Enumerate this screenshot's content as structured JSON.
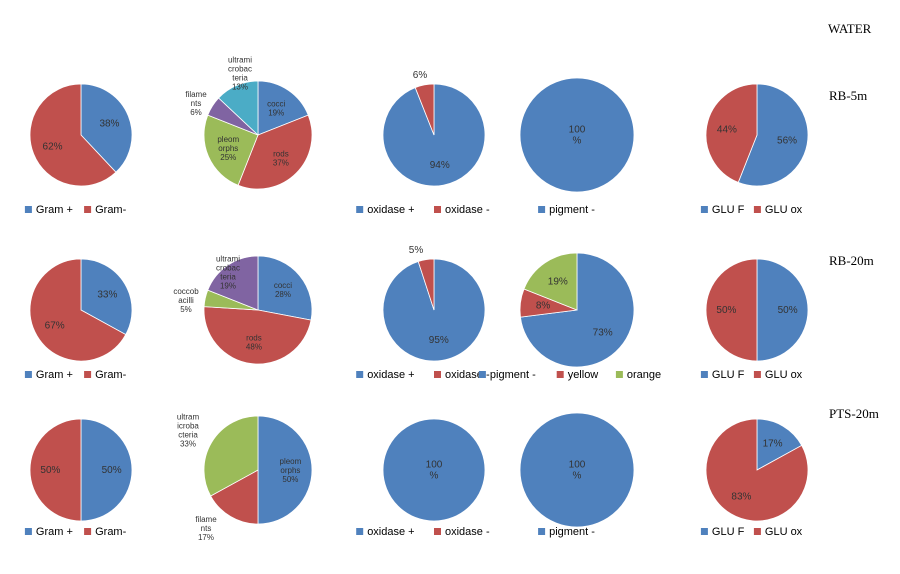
{
  "header": {
    "title": "WATER"
  },
  "colors": {
    "blue": "#4f81bd",
    "red": "#c0504d",
    "green": "#9bbb59",
    "purple": "#8064a2",
    "cyan": "#4bacc6"
  },
  "rows": [
    {
      "label": "RB-5m"
    },
    {
      "label": "RB-20m"
    },
    {
      "label": "PTS-20m"
    }
  ],
  "chart_data": [
    {
      "type": "pie",
      "row": "RB-5m",
      "categories": [
        "Gram +",
        "Gram-"
      ],
      "values": [
        38,
        62
      ],
      "labels": [
        "38%",
        "62%"
      ],
      "legend": [
        "Gram +",
        "Gram-"
      ]
    },
    {
      "type": "pie",
      "row": "RB-5m",
      "categories": [
        "cocci",
        "rods",
        "pleomorphs",
        "filaments",
        "ultramicrobacteria"
      ],
      "values": [
        19,
        37,
        25,
        6,
        13
      ],
      "labels": [
        "cocci\n19%",
        "rods\n37%",
        "pleom\norphs\n25%",
        "filame\nnts\n6%",
        "ultrami\ncrobac\nteria\n13%"
      ],
      "legend": []
    },
    {
      "type": "pie",
      "row": "RB-5m",
      "categories": [
        "oxidase +",
        "oxidase -"
      ],
      "values": [
        94,
        6
      ],
      "labels": [
        "94%",
        "6%"
      ],
      "legend": [
        "oxidase +",
        "oxidase -"
      ]
    },
    {
      "type": "pie",
      "row": "RB-5m",
      "categories": [
        "pigment -"
      ],
      "values": [
        100
      ],
      "labels": [
        "100\n%"
      ],
      "legend": [
        "pigment -"
      ]
    },
    {
      "type": "pie",
      "row": "RB-5m",
      "categories": [
        "GLU F",
        "GLU ox"
      ],
      "values": [
        56,
        44
      ],
      "labels": [
        "56%",
        "44%"
      ],
      "legend": [
        "GLU F",
        "GLU ox"
      ]
    },
    {
      "type": "pie",
      "row": "RB-20m",
      "categories": [
        "Gram +",
        "Gram-"
      ],
      "values": [
        33,
        67
      ],
      "labels": [
        "33%",
        "67%"
      ],
      "legend": [
        "Gram +",
        "Gram-"
      ]
    },
    {
      "type": "pie",
      "row": "RB-20m",
      "categories": [
        "cocci",
        "rods",
        "coccobacilli",
        "ultramicrobacteria"
      ],
      "values": [
        28,
        48,
        5,
        19
      ],
      "labels": [
        "cocci\n28%",
        "rods\n48%",
        "coccob\nacilli\n5%",
        "ultrami\ncrobac\nteria\n19%"
      ],
      "legend": []
    },
    {
      "type": "pie",
      "row": "RB-20m",
      "categories": [
        "oxidase +",
        "oxidase -"
      ],
      "values": [
        95,
        5
      ],
      "labels": [
        "95%",
        "5%"
      ],
      "legend": [
        "oxidase +",
        "oxidase -"
      ]
    },
    {
      "type": "pie",
      "row": "RB-20m",
      "categories": [
        "pigment -",
        "yellow",
        "orange"
      ],
      "values": [
        73,
        8,
        19
      ],
      "labels": [
        "73%",
        "8%",
        "19%"
      ],
      "legend": [
        "pigment -",
        "yellow",
        "orange"
      ]
    },
    {
      "type": "pie",
      "row": "RB-20m",
      "categories": [
        "GLU F",
        "GLU ox"
      ],
      "values": [
        50,
        50
      ],
      "labels": [
        "50%",
        "50%"
      ],
      "legend": [
        "GLU F",
        "GLU ox"
      ]
    },
    {
      "type": "pie",
      "row": "PTS-20m",
      "categories": [
        "Gram +",
        "Gram-"
      ],
      "values": [
        50,
        50
      ],
      "labels": [
        "50%",
        "50%"
      ],
      "legend": [
        "Gram +",
        "Gram-"
      ]
    },
    {
      "type": "pie",
      "row": "PTS-20m",
      "categories": [
        "pleomorphs",
        "filaments",
        "ultramicrobacteria"
      ],
      "values": [
        50,
        17,
        33
      ],
      "labels": [
        "pleom\norphs\n50%",
        "filame\nnts\n17%",
        "ultram\nicroba\ncteria\n33%"
      ],
      "legend": []
    },
    {
      "type": "pie",
      "row": "PTS-20m",
      "categories": [
        "oxidase +",
        "oxidase -"
      ],
      "values": [
        100,
        0
      ],
      "labels": [
        "100\n%",
        ""
      ],
      "legend": [
        "oxidase +",
        "oxidase -"
      ]
    },
    {
      "type": "pie",
      "row": "PTS-20m",
      "categories": [
        "pigment -"
      ],
      "values": [
        100
      ],
      "labels": [
        "100\n%"
      ],
      "legend": [
        "pigment -"
      ]
    },
    {
      "type": "pie",
      "row": "PTS-20m",
      "categories": [
        "GLU F",
        "GLU ox"
      ],
      "values": [
        17,
        83
      ],
      "labels": [
        "17%",
        "83%"
      ],
      "legend": [
        "GLU F",
        "GLU ox"
      ]
    }
  ]
}
